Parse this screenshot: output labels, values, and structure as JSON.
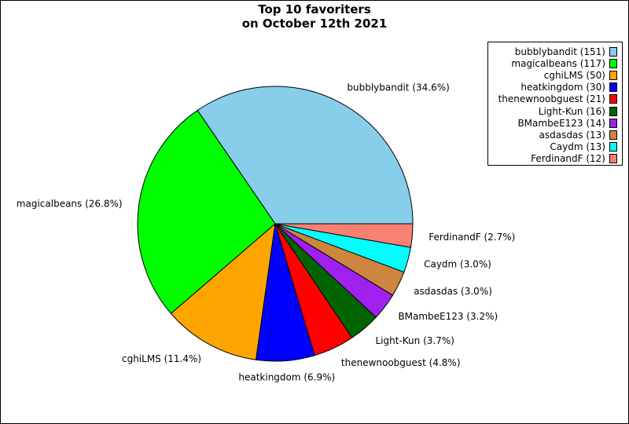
{
  "chart_data": {
    "type": "pie",
    "title_lines": [
      "Top 10 favoriters",
      "on October 12th 2021"
    ],
    "legend_position": "top-right",
    "slices": [
      {
        "name": "bubblybandit",
        "value": 151,
        "percent_label": "34.6%",
        "color": "#87ceeb"
      },
      {
        "name": "magicalbeans",
        "value": 117,
        "percent_label": "26.8%",
        "color": "#00ff00"
      },
      {
        "name": "cghiLMS",
        "value": 50,
        "percent_label": "11.4%",
        "color": "#ffa500"
      },
      {
        "name": "heatkingdom",
        "value": 30,
        "percent_label": "6.9%",
        "color": "#0000ff"
      },
      {
        "name": "thenewnoobguest",
        "value": 21,
        "percent_label": "4.8%",
        "color": "#ff0000"
      },
      {
        "name": "Light-Kun",
        "value": 16,
        "percent_label": "3.7%",
        "color": "#006400"
      },
      {
        "name": "BMambeE123",
        "value": 14,
        "percent_label": "3.2%",
        "color": "#a020f0"
      },
      {
        "name": "asdasdas",
        "value": 13,
        "percent_label": "3.0%",
        "color": "#cd853f"
      },
      {
        "name": "Caydm",
        "value": 13,
        "percent_label": "3.0%",
        "color": "#00ffff"
      },
      {
        "name": "FerdinandF",
        "value": 12,
        "percent_label": "2.7%",
        "color": "#fa8072"
      }
    ]
  }
}
